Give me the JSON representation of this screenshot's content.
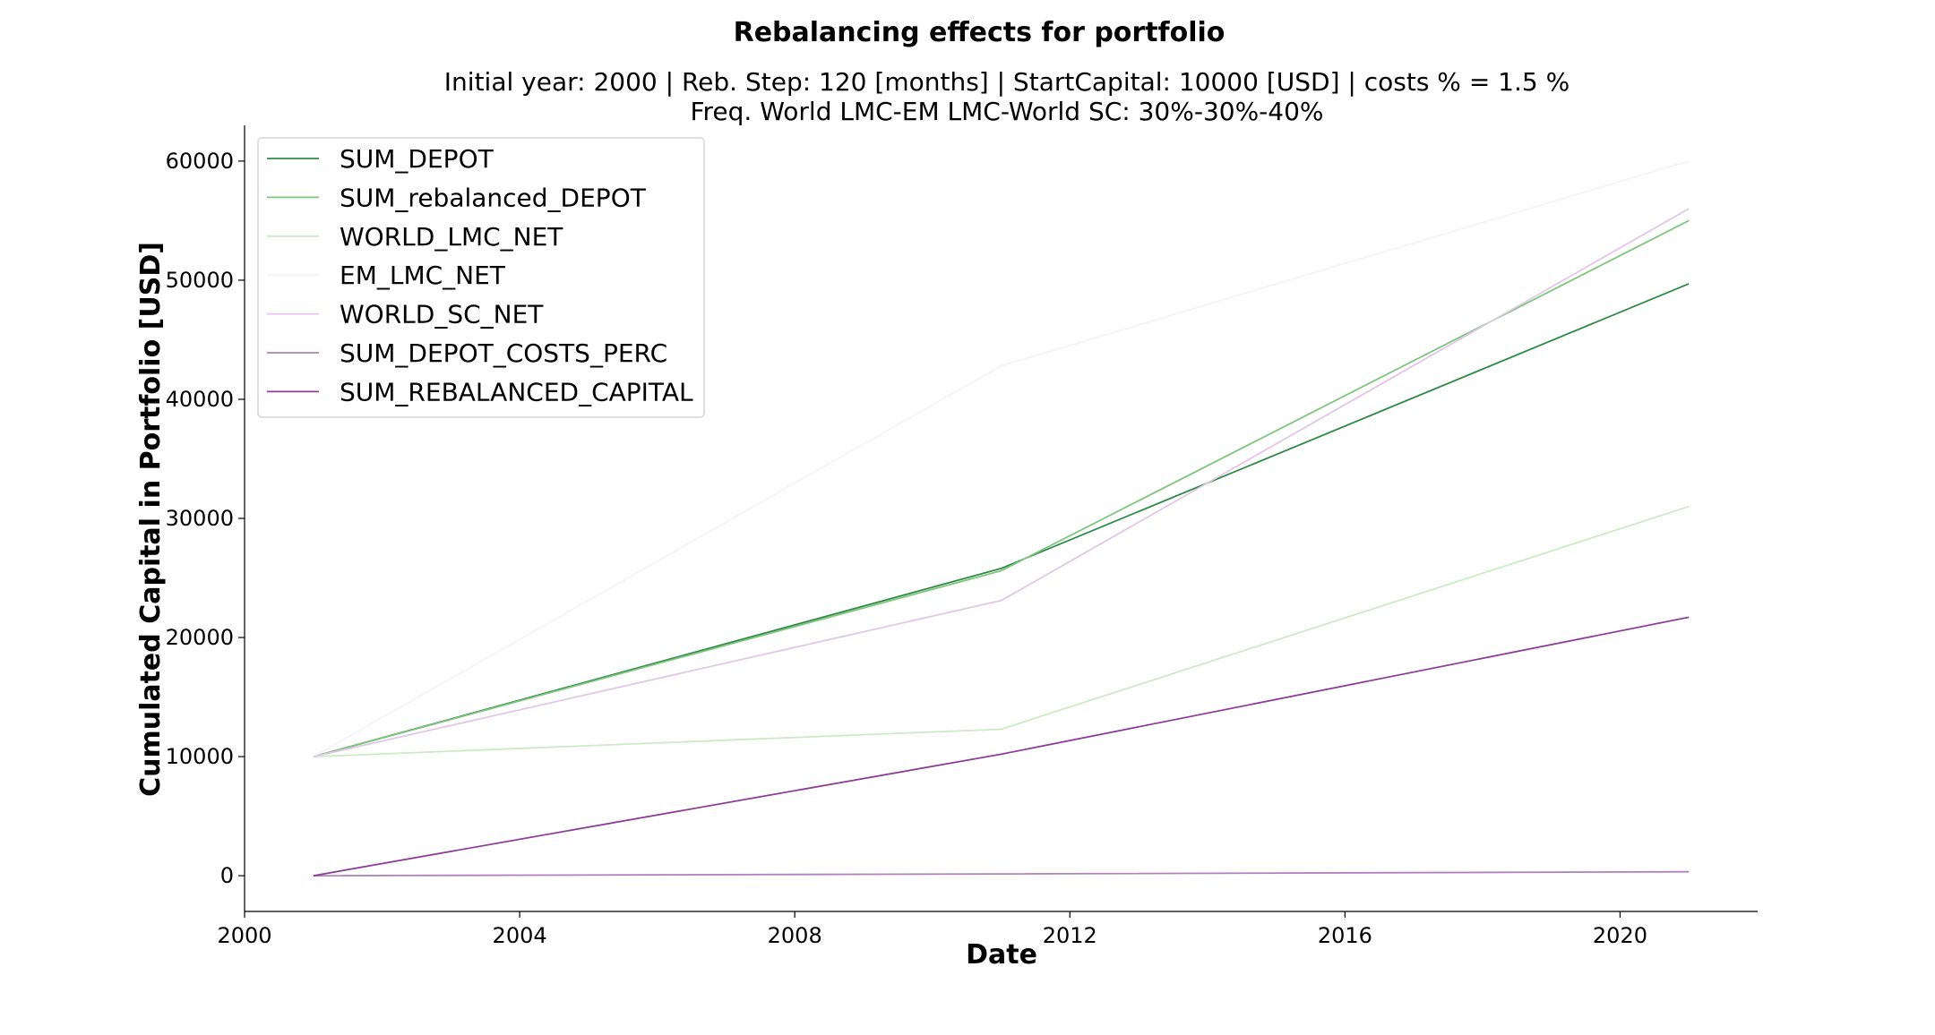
{
  "chart_data": {
    "type": "line",
    "title": "Rebalancing effects for portfolio",
    "subtitle_lines": [
      "Initial year: 2000 | Reb. Step: 120 [months] | StartCapital: 10000 [USD] | costs % = 1.5 %",
      "Freq. World LMC-EM LMC-World SC: 30%-30%-40%"
    ],
    "xlabel": "Date",
    "ylabel": "Cumulated Capital in Portfolio [USD]",
    "x_ticks": [
      "2000",
      "2004",
      "2008",
      "2012",
      "2016",
      "2020"
    ],
    "x_tick_values": [
      2000,
      2004,
      2008,
      2012,
      2016,
      2020
    ],
    "y_ticks": [
      "0",
      "10000",
      "20000",
      "30000",
      "40000",
      "50000",
      "60000"
    ],
    "y_tick_values": [
      0,
      10000,
      20000,
      30000,
      40000,
      50000,
      60000
    ],
    "xlim": [
      2000,
      2022
    ],
    "ylim": [
      -3000,
      63000
    ],
    "grid": false,
    "legend_position": "top-left",
    "x": [
      2001,
      2011,
      2021
    ],
    "series": [
      {
        "name": "SUM_DEPOT",
        "color": "#2f8a46",
        "values": [
          10000,
          25800,
          49700
        ]
      },
      {
        "name": "SUM_rebalanced_DEPOT",
        "color": "#7fc57f",
        "values": [
          10000,
          25600,
          55000
        ]
      },
      {
        "name": "WORLD_LMC_NET",
        "color": "#ccebc5",
        "values": [
          10000,
          12300,
          31000
        ]
      },
      {
        "name": "EM_LMC_NET",
        "color": "#f5f3f7",
        "values": [
          10000,
          42800,
          60000
        ]
      },
      {
        "name": "WORLD_SC_NET",
        "color": "#e1c6e8",
        "values": [
          10000,
          23100,
          56000
        ]
      },
      {
        "name": "SUM_DEPOT_COSTS_PERC",
        "color": "#b27fc0",
        "values": [
          0,
          150,
          330
        ]
      },
      {
        "name": "SUM_REBALANCED_CAPITAL",
        "color": "#8d3f97",
        "values": [
          0,
          10200,
          21700
        ]
      }
    ]
  }
}
